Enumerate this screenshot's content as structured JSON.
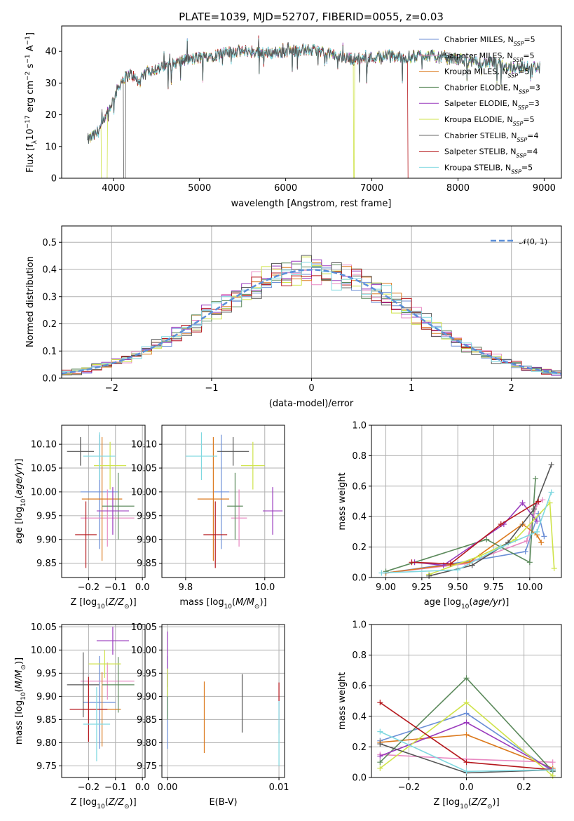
{
  "figure": {
    "title": "PLATE=1039, MJD=52707, FIBERID=0055, z=0.03"
  },
  "colors": [
    "#6b8ed6",
    "#e889c2",
    "#dc7a1e",
    "#5c8a5c",
    "#9a3bbd",
    "#cfe34a",
    "#555555",
    "#b5171c",
    "#7fd8e0"
  ],
  "series_names": [
    "Chabrier MILES, N_SSP=5",
    "Salpeter MILES, N_SSP=5",
    "Kroupa MILES, N_SSP=5",
    "Chabrier ELODIE, N_SSP=3",
    "Salpeter ELODIE, N_SSP=3",
    "Kroupa ELODIE, N_SSP=5",
    "Chabrier STELIB, N_SSP=4",
    "Salpeter STELIB, N_SSP=4",
    "Kroupa STELIB, N_SSP=5"
  ],
  "chart_data": [
    {
      "id": "spectrum",
      "type": "line",
      "xlabel": "wavelength [Angstrom, rest frame]",
      "ylabel": "Flux [f_λ 10^-17 erg cm^-2 s^-1 A^-1]",
      "xlim": [
        3400,
        9200
      ],
      "ylim": [
        0,
        48
      ],
      "xticks": [
        4000,
        5000,
        6000,
        7000,
        8000,
        9000
      ],
      "yticks": [
        0,
        10,
        20,
        30,
        40
      ],
      "grid": false,
      "legend": "right",
      "anchor_x": [
        3700,
        3800,
        3900,
        4000,
        4100,
        4200,
        4300,
        4400,
        4600,
        4800,
        5000,
        5200,
        5400,
        5600,
        5800,
        6000,
        6200,
        6400,
        6600,
        6800,
        7000,
        7200,
        7400,
        7600,
        7800,
        8000,
        8200,
        8400,
        8600,
        8800,
        8950
      ],
      "anchor_y": [
        12,
        14,
        18,
        25,
        31,
        33,
        30,
        34,
        35,
        37,
        38,
        39,
        40,
        40,
        39.5,
        40,
        40.5,
        40,
        38.5,
        37.5,
        38,
        38.5,
        38,
        39,
        38,
        37.5,
        36.5,
        36.5,
        35,
        35,
        35
      ],
      "dropouts": [
        {
          "series": 5,
          "from": 3860,
          "to": 3930,
          "y": 0
        },
        {
          "series": 6,
          "from": 4120,
          "to": 4140,
          "y": 0
        },
        {
          "series": 5,
          "from": 6785,
          "to": 6800,
          "y": 0
        },
        {
          "series": 7,
          "from": 7420,
          "to": 7440,
          "y": 0
        }
      ]
    },
    {
      "id": "residual_hist",
      "type": "histogram",
      "xlabel": "(data-model)/error",
      "ylabel": "Normed distribution",
      "xlim": [
        -2.5,
        2.5
      ],
      "ylim": [
        0,
        0.56
      ],
      "xticks": [
        -2,
        -1,
        0,
        1,
        2
      ],
      "yticks": [
        0.0,
        0.1,
        0.2,
        0.3,
        0.4,
        0.5
      ],
      "grid": true,
      "legend": "top-right",
      "reference_label": "𝒩(0, 1)",
      "bin_width": 0.1
    },
    {
      "id": "age_vs_Z",
      "type": "errorbar",
      "xlabel": "Z [log10(Z/Z☉)]",
      "ylabel": "age [log10(age/yr)]",
      "xlim": [
        -0.3,
        0.01
      ],
      "ylim": [
        9.82,
        10.14
      ],
      "xticks": [
        -0.2,
        -0.1,
        0.0
      ],
      "yticks": [
        9.85,
        9.9,
        9.95,
        10.0,
        10.05,
        10.1
      ],
      "points": [
        {
          "x": -0.16,
          "xerr": 0.07,
          "y": 10.0,
          "yerr": 0.12
        },
        {
          "x": -0.13,
          "xerr": 0.1,
          "y": 9.945,
          "yerr": 0.06
        },
        {
          "x": -0.15,
          "xerr": 0.075,
          "y": 9.985,
          "yerr": 0.13
        },
        {
          "x": -0.09,
          "xerr": 0.06,
          "y": 9.97,
          "yerr": 0.07
        },
        {
          "x": -0.11,
          "xerr": 0.06,
          "y": 9.96,
          "yerr": 0.05
        },
        {
          "x": -0.12,
          "xerr": 0.06,
          "y": 10.055,
          "yerr": 0.05
        },
        {
          "x": -0.23,
          "xerr": 0.05,
          "y": 10.085,
          "yerr": 0.03
        },
        {
          "x": -0.21,
          "xerr": 0.04,
          "y": 9.91,
          "yerr": 0.07
        },
        {
          "x": -0.16,
          "xerr": 0.06,
          "y": 10.075,
          "yerr": 0.05
        }
      ]
    },
    {
      "id": "age_vs_mass",
      "type": "errorbar",
      "xlabel": "mass [log10(M/M☉)]",
      "ylabel": "",
      "xlim": [
        9.74,
        10.05
      ],
      "ylim": [
        9.82,
        10.14
      ],
      "xticks": [
        9.8,
        10.0
      ],
      "yticks": [
        9.85,
        9.9,
        9.95,
        10.0,
        10.05,
        10.1
      ],
      "points": [
        {
          "x": 9.89,
          "xerr": 0.02,
          "y": 10.0,
          "yerr": 0.12
        },
        {
          "x": 9.935,
          "xerr": 0.02,
          "y": 9.945,
          "yerr": 0.06
        },
        {
          "x": 9.87,
          "xerr": 0.04,
          "y": 9.985,
          "yerr": 0.13
        },
        {
          "x": 9.925,
          "xerr": 0.02,
          "y": 9.97,
          "yerr": 0.07
        },
        {
          "x": 10.02,
          "xerr": 0.025,
          "y": 9.96,
          "yerr": 0.05
        },
        {
          "x": 9.97,
          "xerr": 0.03,
          "y": 10.055,
          "yerr": 0.05
        },
        {
          "x": 9.92,
          "xerr": 0.04,
          "y": 10.085,
          "yerr": 0.03
        },
        {
          "x": 9.875,
          "xerr": 0.03,
          "y": 9.91,
          "yerr": 0.07
        },
        {
          "x": 9.84,
          "xerr": 0.04,
          "y": 10.075,
          "yerr": 0.05
        }
      ]
    },
    {
      "id": "weight_vs_age",
      "type": "line",
      "xlabel": "age [log10(age/yr)]",
      "ylabel": "mass weight",
      "xlim": [
        8.9,
        10.22
      ],
      "ylim": [
        0,
        1.0
      ],
      "xticks": [
        9.0,
        9.25,
        9.5,
        9.75,
        10.0
      ],
      "yticks": [
        0.0,
        0.2,
        0.4,
        0.6,
        0.8,
        1.0
      ],
      "grid": true,
      "series": [
        {
          "x": [
            9.0,
            9.6,
            9.97,
            10.06,
            10.1
          ],
          "y": [
            0.03,
            0.11,
            0.17,
            0.42,
            0.27
          ]
        },
        {
          "x": [
            9.0,
            9.55,
            9.98,
            10.05,
            10.09
          ],
          "y": [
            0.03,
            0.09,
            0.24,
            0.48,
            0.51
          ]
        },
        {
          "x": [
            9.0,
            9.58,
            9.95,
            10.05,
            10.08
          ],
          "y": [
            0.03,
            0.1,
            0.35,
            0.28,
            0.23
          ]
        },
        {
          "x": [
            9.0,
            9.7,
            10.0,
            10.04
          ],
          "y": [
            0.04,
            0.25,
            0.1,
            0.65
          ]
        },
        {
          "x": [
            9.2,
            9.4,
            9.82,
            9.95,
            10.05
          ],
          "y": [
            0.1,
            0.08,
            0.35,
            0.49,
            0.37
          ]
        },
        {
          "x": [
            9.3,
            9.65,
            9.9,
            10.14,
            10.17
          ],
          "y": [
            0.02,
            0.14,
            0.25,
            0.49,
            0.06
          ]
        },
        {
          "x": [
            9.3,
            9.6,
            9.85,
            10.03,
            10.15
          ],
          "y": [
            0.01,
            0.08,
            0.23,
            0.45,
            0.74
          ]
        },
        {
          "x": [
            9.18,
            9.45,
            9.8,
            10.06
          ],
          "y": [
            0.1,
            0.09,
            0.35,
            0.5
          ]
        },
        {
          "x": [
            8.97,
            9.5,
            9.8,
            10.05,
            10.15
          ],
          "y": [
            0.03,
            0.05,
            0.2,
            0.3,
            0.56
          ]
        }
      ]
    },
    {
      "id": "mass_vs_Z",
      "type": "errorbar",
      "xlabel": "Z [log10(Z/Z☉)]",
      "ylabel": "mass [log10(M/M☉)]",
      "xlim": [
        -0.3,
        0.01
      ],
      "ylim": [
        9.725,
        10.055
      ],
      "xticks": [
        -0.2,
        -0.1,
        0.0
      ],
      "yticks": [
        9.75,
        9.8,
        9.85,
        9.9,
        9.95,
        10.0,
        10.05
      ],
      "points": [
        {
          "x": -0.16,
          "xerr": 0.06,
          "y": 9.887,
          "yerr": 0.1
        },
        {
          "x": -0.13,
          "xerr": 0.1,
          "y": 9.933,
          "yerr": 0.04
        },
        {
          "x": -0.15,
          "xerr": 0.07,
          "y": 9.872,
          "yerr": 0.08
        },
        {
          "x": -0.09,
          "xerr": 0.06,
          "y": 9.925,
          "yerr": 0.06
        },
        {
          "x": -0.11,
          "xerr": 0.06,
          "y": 10.02,
          "yerr": 0.03
        },
        {
          "x": -0.14,
          "xerr": 0.06,
          "y": 9.97,
          "yerr": 0.03
        },
        {
          "x": -0.22,
          "xerr": 0.06,
          "y": 9.925,
          "yerr": 0.07
        },
        {
          "x": -0.2,
          "xerr": 0.07,
          "y": 9.872,
          "yerr": 0.07
        },
        {
          "x": -0.17,
          "xerr": 0.05,
          "y": 9.84,
          "yerr": 0.08
        }
      ]
    },
    {
      "id": "mass_vs_EBV",
      "type": "errorbar",
      "xlabel": "E(B-V)",
      "ylabel": "",
      "xlim": [
        -0.0005,
        0.0105
      ],
      "ylim": [
        9.725,
        10.055
      ],
      "xticks": [
        0.0,
        0.01
      ],
      "yticks": [
        9.75,
        9.8,
        9.85,
        9.9,
        9.95,
        10.0,
        10.05
      ],
      "points": [
        {
          "x": 0.0,
          "xerr": 0,
          "y": 9.887,
          "yerr": 0.1
        },
        {
          "x": 0.01,
          "xerr": 0,
          "y": 9.86,
          "yerr": 0.04
        },
        {
          "x": 0.0033,
          "xerr": 0,
          "y": 9.855,
          "yerr": 0.077
        },
        {
          "x": 0.0,
          "xerr": 0,
          "y": 9.9,
          "yerr": 0.05
        },
        {
          "x": 0.0,
          "xerr": 0,
          "y": 9.98,
          "yerr": 0.06
        },
        {
          "x": 0.0,
          "xerr": 0,
          "y": 9.93,
          "yerr": 0.03
        },
        {
          "x": 0.0067,
          "xerr": 0,
          "y": 9.885,
          "yerr": 0.063
        },
        {
          "x": 0.01,
          "xerr": 0,
          "y": 9.91,
          "yerr": 0.02
        },
        {
          "x": 0.01,
          "xerr": 0,
          "y": 9.82,
          "yerr": 0.07
        }
      ]
    },
    {
      "id": "weight_vs_Z",
      "type": "line",
      "xlabel": "Z [log10(Z/Z☉)]",
      "ylabel": "mass weight",
      "xlim": [
        -0.33,
        0.33
      ],
      "ylim": [
        0,
        1.0
      ],
      "xticks": [
        -0.2,
        0.0,
        0.2
      ],
      "yticks": [
        0.0,
        0.2,
        0.4,
        0.6,
        0.8,
        1.0
      ],
      "grid": true,
      "series": [
        {
          "x": [
            -0.3,
            0.0,
            0.3
          ],
          "y": [
            0.24,
            0.42,
            0.04
          ]
        },
        {
          "x": [
            -0.3,
            0.0,
            0.3
          ],
          "y": [
            0.15,
            0.12,
            0.1
          ]
        },
        {
          "x": [
            -0.3,
            0.0,
            0.3
          ],
          "y": [
            0.23,
            0.28,
            0.06
          ]
        },
        {
          "x": [
            -0.3,
            0.0,
            0.3
          ],
          "y": [
            0.1,
            0.65,
            0.04
          ]
        },
        {
          "x": [
            -0.3,
            0.0,
            0.3
          ],
          "y": [
            0.14,
            0.36,
            0.05
          ]
        },
        {
          "x": [
            -0.3,
            0.0,
            0.3
          ],
          "y": [
            0.06,
            0.49,
            0.01
          ]
        },
        {
          "x": [
            -0.3,
            0.0,
            0.3
          ],
          "y": [
            0.22,
            0.03,
            0.05
          ]
        },
        {
          "x": [
            -0.3,
            0.0,
            0.3
          ],
          "y": [
            0.49,
            0.1,
            0.05
          ]
        },
        {
          "x": [
            -0.3,
            0.0,
            0.3
          ],
          "y": [
            0.3,
            0.04,
            0.05
          ]
        }
      ]
    }
  ]
}
